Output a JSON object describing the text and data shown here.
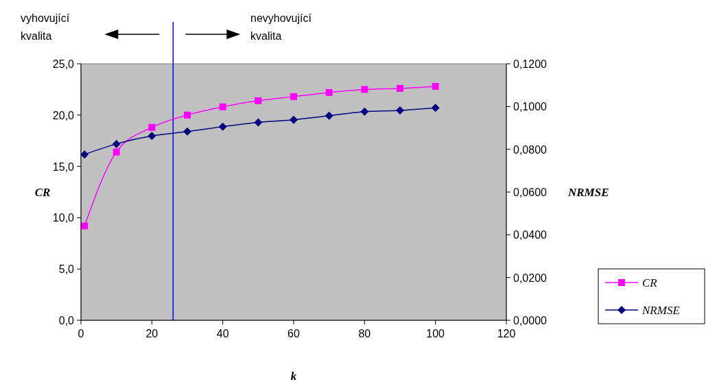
{
  "chart_data": {
    "type": "line",
    "xlabel": "k",
    "ylabel": "CR",
    "y2label": "NRMSE",
    "x": [
      1,
      10,
      20,
      30,
      40,
      50,
      60,
      70,
      80,
      90,
      100
    ],
    "xlim": [
      0,
      120
    ],
    "xticks": [
      0,
      20,
      40,
      60,
      80,
      100,
      120
    ],
    "ylim": [
      0,
      25
    ],
    "yticks": [
      {
        "value": 0,
        "label": "0,0"
      },
      {
        "value": 5,
        "label": "5,0"
      },
      {
        "value": 10,
        "label": "10,0"
      },
      {
        "value": 15,
        "label": "15,0"
      },
      {
        "value": 20,
        "label": "20,0"
      },
      {
        "value": 25,
        "label": "25,0"
      }
    ],
    "y2lim": [
      0,
      0.12
    ],
    "y2ticks": [
      {
        "value": 0,
        "label": "0,0000"
      },
      {
        "value": 0.02,
        "label": "0,0200"
      },
      {
        "value": 0.04,
        "label": "0,0400"
      },
      {
        "value": 0.06,
        "label": "0,0600"
      },
      {
        "value": 0.08,
        "label": "0,0800"
      },
      {
        "value": 0.1,
        "label": "0,1000"
      },
      {
        "value": 0.12,
        "label": "0,1200"
      }
    ],
    "series": [
      {
        "name": "CR",
        "color": "#ff00ff",
        "marker": "square",
        "values": [
          9.2,
          16.4,
          18.8,
          20.0,
          20.8,
          21.4,
          21.8,
          22.2,
          22.5,
          22.6,
          22.8
        ]
      },
      {
        "name": "NRMSE",
        "color": "#000080",
        "marker": "diamond",
        "axis": "y2",
        "values": [
          0.0776,
          0.0825,
          0.0862,
          0.0883,
          0.0906,
          0.0926,
          0.0938,
          0.0957,
          0.0976,
          0.0982,
          0.0994
        ]
      }
    ],
    "ref_lines": [
      {
        "axis": "x",
        "value": 26,
        "color": "#0000ff"
      }
    ],
    "annotations": [
      "vyhovující kvalita",
      "nevyhovující kvalita"
    ],
    "legend": "right",
    "grid": false
  }
}
